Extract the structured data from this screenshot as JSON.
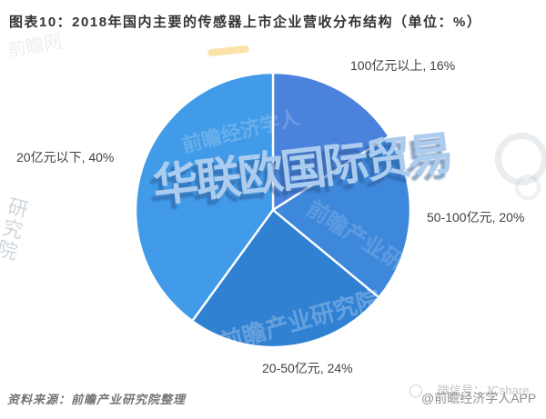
{
  "figure": {
    "title": "图表10：2018年国内主要的传感器上市企业营收分布结构（单位：%）",
    "source_note": "资料来源：前瞻产业研究院整理"
  },
  "chart_data": {
    "type": "pie",
    "title": "2018年国内主要的传感器上市企业营收分布结构",
    "unit": "%",
    "labels": [
      "100亿元以上",
      "50-100亿元",
      "20-50亿元",
      "20亿元以下"
    ],
    "values": [
      16,
      20,
      24,
      40
    ],
    "colors": [
      "#4B82DC",
      "#3E88DC",
      "#3181D3",
      "#429BE8"
    ],
    "stroke_color": "#FFFFFF",
    "start_angle": "12-oclock",
    "direction": "clockwise",
    "legend": "none",
    "label_format": "{name}, {value}%"
  },
  "callouts": [
    "100亿元以上, 16%",
    "50-100亿元, 20%",
    "20-50亿元, 24%",
    "20亿元以下, 40%"
  ],
  "watermarks": {
    "main": "华联欧国际贸易",
    "wechat_id": "微信号：JCshare",
    "app_credit": "@前瞻经济学人APP",
    "pie_logo_text_1": "前瞻产业研究院",
    "pie_logo_text_2": "前瞻经济学人",
    "pie_logo_text_3": "前瞻产业研究院",
    "edge_text": "研究院",
    "corner_text": "前瞻网",
    "ring_glyph": "◯"
  },
  "colors": {
    "accent_blue": "#3E88DC",
    "watermark_fill": "#ABCCEE",
    "watermark_shadow": "#3A6FA9",
    "text_dark": "#333333",
    "text_gray": "#8A8A8A"
  }
}
